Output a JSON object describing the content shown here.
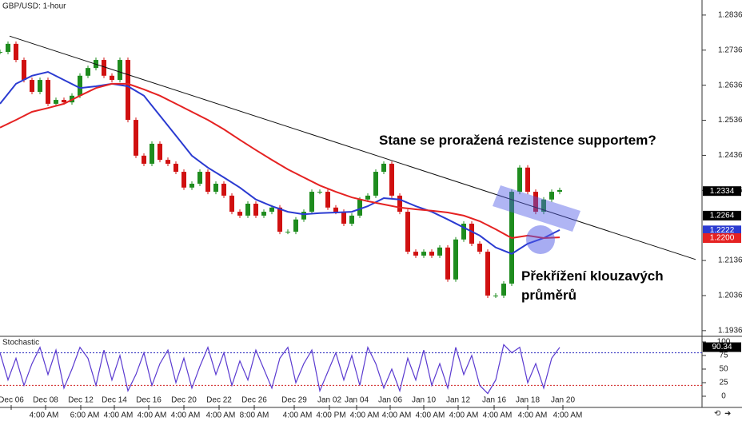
{
  "chart_data": [
    {
      "type": "candlestick",
      "title": "GBP/USD: 1-hour",
      "x": [
        0,
        1,
        2,
        3,
        4,
        5,
        6,
        7,
        8,
        9,
        10,
        11,
        12,
        13,
        14,
        15,
        16,
        17,
        18,
        19,
        20,
        21,
        22,
        23,
        24,
        25,
        26,
        27,
        28,
        29,
        30,
        31,
        32,
        33,
        34,
        35,
        36,
        37,
        38,
        39,
        40,
        41,
        42,
        43,
        44,
        45,
        46,
        47,
        48,
        49,
        50,
        51,
        52,
        53,
        54,
        55,
        56,
        57,
        58,
        59,
        60,
        61,
        62,
        63,
        64,
        65,
        66,
        67,
        68,
        69,
        70
      ],
      "close": [
        1.2731,
        1.2754,
        1.2708,
        1.2651,
        1.2617,
        1.2651,
        1.2583,
        1.2594,
        1.2587,
        1.2606,
        1.2663,
        1.2685,
        1.2708,
        1.2663,
        1.2651,
        1.2708,
        1.2537,
        1.2435,
        1.2412,
        1.2469,
        1.2423,
        1.2412,
        1.2389,
        1.2344,
        1.2355,
        1.2389,
        1.2332,
        1.2355,
        1.2321,
        1.2275,
        1.2264,
        1.2298,
        1.2264,
        1.2275,
        1.2287,
        1.2218,
        1.2218,
        1.2253,
        1.2275,
        1.2332,
        1.2332,
        1.2287,
        1.2275,
        1.2241,
        1.2264,
        1.231,
        1.2321,
        1.2389,
        1.2412,
        1.2321,
        1.2275,
        1.2161,
        1.215,
        1.2161,
        1.215,
        1.2173,
        1.2082,
        1.2196,
        1.2241,
        1.2184,
        1.2161,
        1.2036,
        1.2036,
        1.207,
        1.2332,
        1.2401,
        1.2332,
        1.2275,
        1.231,
        1.2332,
        1.2337
      ],
      "up_color": "#1e8c1e",
      "down_color": "#d01010",
      "moving_averages": [
        {
          "color": "#2b3bd1",
          "x": [
            0,
            2,
            4,
            6,
            8,
            10,
            12,
            14,
            16,
            18,
            20,
            22,
            24,
            26,
            28,
            30,
            32,
            34,
            36,
            38,
            40,
            42,
            44,
            46,
            48,
            50,
            52,
            54,
            56,
            58,
            60,
            62,
            64,
            66,
            68,
            70
          ],
          "values": [
            1.2583,
            1.264,
            1.2663,
            1.2674,
            1.2651,
            1.2628,
            1.2633,
            1.264,
            1.2633,
            1.2606,
            1.2549,
            1.2492,
            1.2435,
            1.2401,
            1.2373,
            1.2344,
            1.231,
            1.2291,
            1.2275,
            1.2268,
            1.2271,
            1.2273,
            1.2275,
            1.2291,
            1.2314,
            1.231,
            1.2291,
            1.2275,
            1.2253,
            1.223,
            1.2207,
            1.2173,
            1.2155,
            1.2184,
            1.22,
            1.2223
          ]
        },
        {
          "color": "#e52222",
          "x": [
            0,
            2,
            4,
            6,
            8,
            10,
            12,
            14,
            16,
            18,
            20,
            22,
            24,
            26,
            28,
            30,
            32,
            34,
            36,
            38,
            40,
            42,
            44,
            46,
            48,
            50,
            52,
            54,
            56,
            58,
            60,
            62,
            64,
            66,
            68,
            70
          ],
          "values": [
            1.2515,
            1.2537,
            1.256,
            1.2571,
            1.2583,
            1.2606,
            1.2628,
            1.264,
            1.264,
            1.2624,
            1.2606,
            1.2583,
            1.256,
            1.2537,
            1.251,
            1.248,
            1.2451,
            1.2423,
            1.2396,
            1.2373,
            1.235,
            1.2332,
            1.2316,
            1.2305,
            1.2296,
            1.2287,
            1.2282,
            1.2278,
            1.2273,
            1.2264,
            1.2248,
            1.2225,
            1.22,
            1.2207,
            1.22,
            1.2202
          ]
        }
      ],
      "trendline": {
        "x": [
          1.2,
          87
        ],
        "values": [
          1.2776,
          1.2139
        ],
        "color": "#111111"
      },
      "xlim": [
        0,
        87.8
      ],
      "ylim": [
        1.1922,
        1.2879
      ],
      "yticks": [
        1.2836,
        1.2736,
        1.2636,
        1.2536,
        1.2436,
        1.2336,
        1.2136,
        1.2036,
        1.1936
      ],
      "xticks": [
        {
          "value": 1.4,
          "label": "Dec 06"
        },
        {
          "value": 5.7,
          "label": "Dec 08"
        },
        {
          "value": 10.1,
          "label": "Dec 12"
        },
        {
          "value": 14.3,
          "label": "Dec 14"
        },
        {
          "value": 18.6,
          "label": "Dec 16"
        },
        {
          "value": 23,
          "label": "Dec 20"
        },
        {
          "value": 27.4,
          "label": "Dec 22"
        },
        {
          "value": 31.8,
          "label": "Dec 26"
        },
        {
          "value": 36.8,
          "label": "Dec 29"
        },
        {
          "value": 41.2,
          "label": "Jan 02"
        },
        {
          "value": 44.6,
          "label": "Jan 04"
        },
        {
          "value": 48.8,
          "label": "Jan 06"
        },
        {
          "value": 53,
          "label": "Jan 10"
        },
        {
          "value": 57.3,
          "label": "Jan 12"
        },
        {
          "value": 61.8,
          "label": "Jan 16"
        },
        {
          "value": 66,
          "label": "Jan 18"
        },
        {
          "value": 70.4,
          "label": "Jan 20"
        }
      ],
      "time_ticks": [
        {
          "value": 5.5,
          "label": "4:00 AM"
        },
        {
          "value": 10.6,
          "label": "6:00 AM"
        },
        {
          "value": 14.8,
          "label": "4:00 AM"
        },
        {
          "value": 19,
          "label": "4:00 AM"
        },
        {
          "value": 23.2,
          "label": "4:00 AM"
        },
        {
          "value": 27.6,
          "label": "4:00 AM"
        },
        {
          "value": 31.8,
          "label": "8:00 AM"
        },
        {
          "value": 37.2,
          "label": "4:00 AM"
        },
        {
          "value": 41.4,
          "label": "4:00 PM"
        },
        {
          "value": 45.6,
          "label": "4:00 AM"
        },
        {
          "value": 49.6,
          "label": "4:00 AM"
        },
        {
          "value": 53.8,
          "label": "4:00 AM"
        },
        {
          "value": 58,
          "label": "4:00 AM"
        },
        {
          "value": 62.2,
          "label": "4:00 AM"
        },
        {
          "value": 66.6,
          "label": "4:00 AM"
        },
        {
          "value": 71,
          "label": "4:00 AM"
        }
      ],
      "price_tags": [
        {
          "value": 1.2334,
          "color": "#000000"
        },
        {
          "value": 1.2264,
          "color": "#000000"
        },
        {
          "value": 1.2222,
          "color": "#2b3bd1"
        },
        {
          "value": 1.22,
          "label": "1.2200",
          "color": "#e52222"
        }
      ],
      "annotations": [
        "Stane se proražená rezistence supportem?",
        "Překřížení klouzavých",
        "průměrů"
      ]
    },
    {
      "type": "line",
      "title": "Stochastic",
      "x": [
        0,
        1,
        2,
        3,
        4,
        5,
        6,
        7,
        8,
        9,
        10,
        11,
        12,
        13,
        14,
        15,
        16,
        17,
        18,
        19,
        20,
        21,
        22,
        23,
        24,
        25,
        26,
        27,
        28,
        29,
        30,
        31,
        32,
        33,
        34,
        35,
        36,
        37,
        38,
        39,
        40,
        41,
        42,
        43,
        44,
        45,
        46,
        47,
        48,
        49,
        50,
        51,
        52,
        53,
        54,
        55,
        56,
        57,
        58,
        59,
        60,
        61,
        62,
        63,
        64,
        65,
        66,
        67,
        68,
        69,
        70
      ],
      "values": [
        80,
        30,
        70,
        20,
        60,
        90,
        40,
        85,
        15,
        50,
        90,
        70,
        20,
        85,
        30,
        75,
        10,
        40,
        80,
        20,
        60,
        85,
        25,
        70,
        15,
        55,
        90,
        40,
        80,
        20,
        65,
        30,
        85,
        50,
        15,
        70,
        90,
        25,
        60,
        85,
        10,
        45,
        80,
        30,
        75,
        20,
        90,
        60,
        15,
        50,
        10,
        70,
        30,
        85,
        20,
        60,
        15,
        90,
        40,
        75,
        20,
        5,
        30,
        95,
        80,
        90,
        25,
        60,
        15,
        70,
        90
      ],
      "color": "#5a3ad0",
      "ylim": [
        0,
        100
      ],
      "yticks": [
        100,
        75,
        50,
        25,
        0
      ],
      "levels": [
        {
          "value": 80,
          "color": "#3030c0"
        },
        {
          "value": 20,
          "color": "#d02020"
        }
      ],
      "price_tags": [
        {
          "value": 90.34,
          "color": "#000000"
        }
      ]
    }
  ]
}
